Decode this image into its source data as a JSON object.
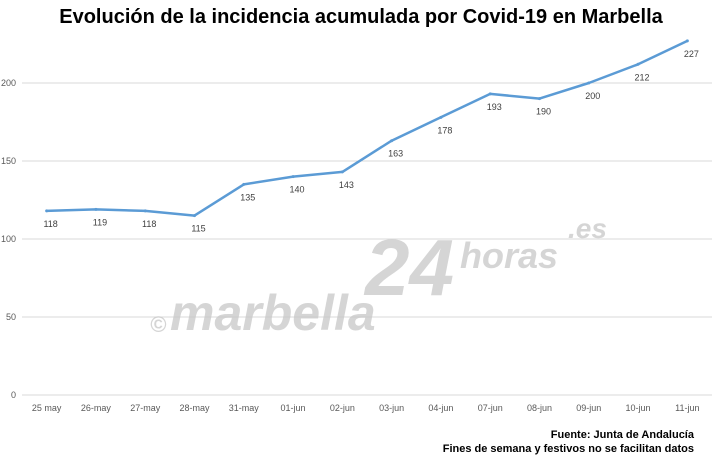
{
  "chart_data": {
    "type": "line",
    "title": "Evolución de la incidencia acumulada por Covid-19 en Marbella",
    "xlabel": "",
    "ylabel": "",
    "categories": [
      "25 may",
      "26-may",
      "27-may",
      "28-may",
      "31-may",
      "01-jun",
      "02-jun",
      "03-jun",
      "04-jun",
      "07-jun",
      "08-jun",
      "09-jun",
      "10-jun",
      "11-jun"
    ],
    "series": [
      {
        "values": [
          118,
          119,
          118,
          115,
          135,
          140,
          143,
          163,
          178,
          193,
          190,
          200,
          212,
          227
        ]
      }
    ],
    "ylim": [
      0,
      250
    ],
    "yticks": [
      "0",
      "50",
      "100",
      "150",
      "200"
    ],
    "data_labels": [
      "118",
      "119",
      "118",
      "115",
      "135",
      "140",
      "143",
      "163",
      "178",
      "193",
      "190",
      "200",
      "212",
      "227"
    ],
    "grid": true,
    "legend": "none",
    "line_color": "#5b9bd5"
  },
  "watermark": {
    "copyright": "©",
    "name": "marbella",
    "number": "24",
    "suffix": "horas",
    "domain": ".es"
  },
  "notes": {
    "source": "Fuente: Junta de Andalucía",
    "disclaimer": "Fines de semana y festivos no se facilitan datos"
  }
}
